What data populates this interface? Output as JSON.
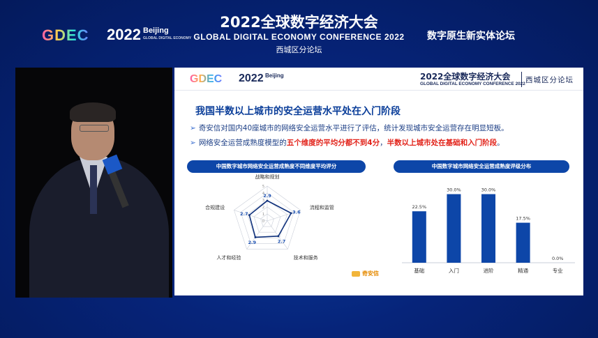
{
  "header": {
    "gdec_logo": "GDEC",
    "year_logo": "2022",
    "year_city": "Beijing",
    "year_sub": "GLOBAL DIGITAL ECONOMY",
    "title_cn": "2022全球数字经济大会",
    "title_en": "GLOBAL DIGITAL ECONOMY CONFERENCE 2022",
    "subtitle": "西城区分论坛",
    "forum": "数字原生新实体论坛"
  },
  "slide": {
    "header": {
      "gdec_logo": "GDEC",
      "year_logo": "2022",
      "year_city": "Beijing",
      "title_cn": "2022全球数字经济大会",
      "title_en": "GLOBAL DIGITAL ECONOMY CONFERENCE 2022",
      "forum": "西城区分论坛"
    },
    "heading": "我国半数以上城市的安全运营水平处在入门阶段",
    "bullets": [
      {
        "arrow": "➢",
        "text": "奇安信对国内40座城市的网络安全运营水平进行了评估，统计发现城市安全运营存在明显短板。"
      },
      {
        "arrow": "➢",
        "text_pre": "网络安全运营成熟度模型的",
        "text_red1": "五个维度的平均分都不到4分",
        "text_mid": "，",
        "text_red2": "半数以上城市处在基础和入门阶段",
        "text_post": "。"
      }
    ],
    "footer_logo": "奇安信",
    "colors": {
      "accent": "#0d46a8",
      "highlight": "#e2231a",
      "bar": "#0d46a8"
    }
  },
  "chart_data": [
    {
      "type": "radar",
      "title": "中国数字城市网络安全运营成熟度不同维度平均评分",
      "axes": [
        "战略和规划",
        "流程和监管",
        "技术和服务",
        "人才和经验",
        "合规建设"
      ],
      "values": [
        2.9,
        3.6,
        2.7,
        2.9,
        2.7
      ],
      "value_labels": [
        "2.9",
        "3.6",
        "2.7",
        "2.9",
        "2.7"
      ],
      "scale_ticks": [
        "0",
        "1",
        "2",
        "3",
        "4",
        "5"
      ],
      "range": [
        0,
        5
      ]
    },
    {
      "type": "bar",
      "title": "中国数字城市网络安全运营成熟度评级分布",
      "categories": [
        "基础",
        "入门",
        "进阶",
        "精通",
        "专业"
      ],
      "values": [
        22.5,
        30.0,
        30.0,
        17.5,
        0.0
      ],
      "value_labels": [
        "22.5%",
        "30.0%",
        "30.0%",
        "17.5%",
        "0.0%"
      ],
      "ylim": [
        0,
        32
      ]
    }
  ]
}
